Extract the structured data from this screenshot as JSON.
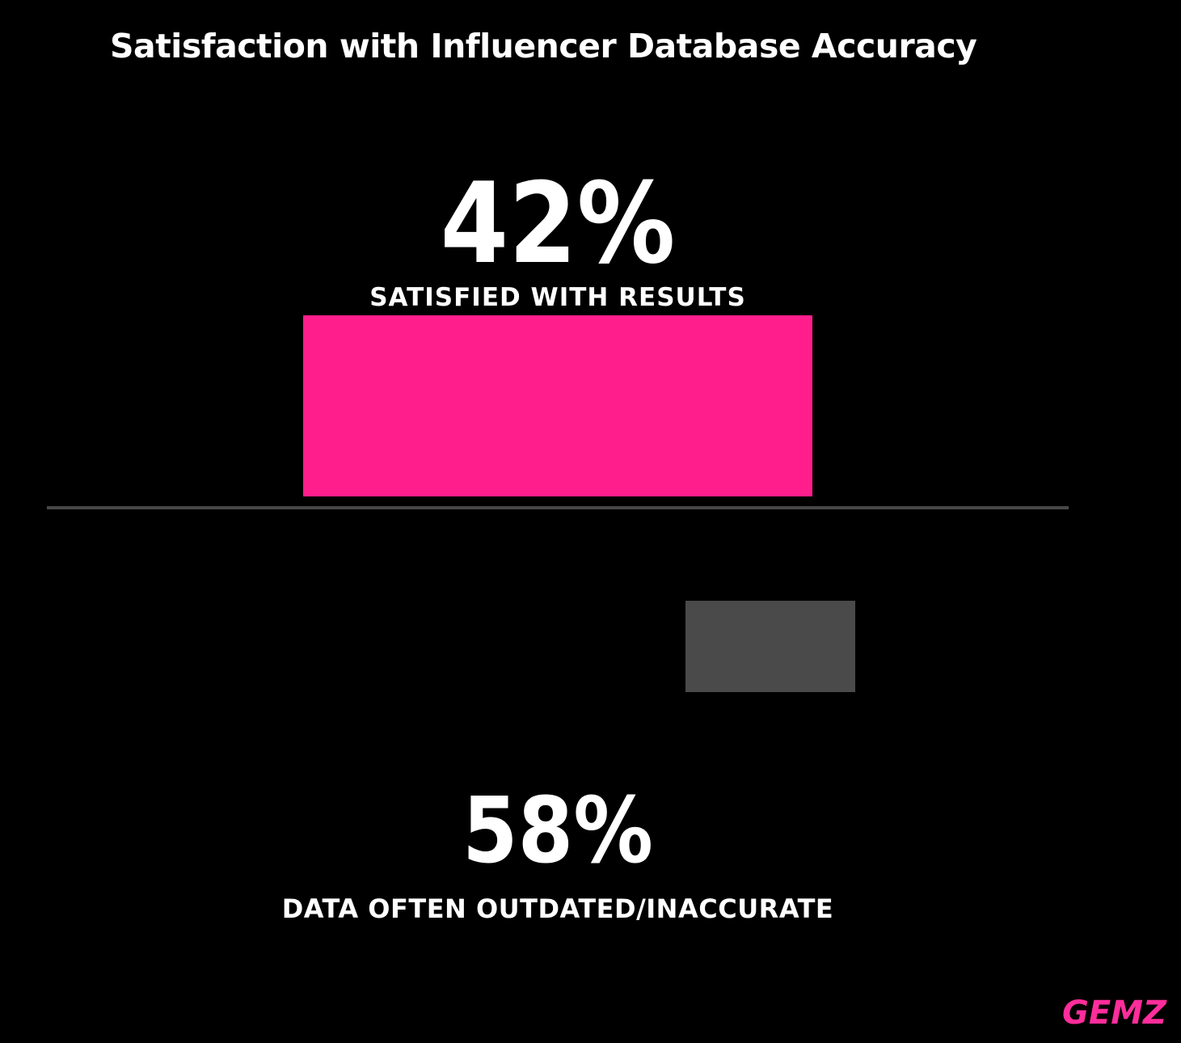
{
  "title": "Satisfaction with Influencer Database Accuracy",
  "brand": "GEMZ",
  "colors": {
    "background": "#000000",
    "title_text": "#ffffff",
    "accent_pink": "#ff1e8c",
    "muted_gray_bar": "#4a4a4a",
    "divider_gray": "#474747",
    "brand_pink": "#ff2d9b"
  },
  "stats": {
    "satisfied": {
      "value": "42%",
      "label": "SATISFIED WITH RESULTS"
    },
    "outdated": {
      "value": "58%",
      "label": "DATA OFTEN OUTDATED/INACCURATE"
    }
  },
  "chart_data": {
    "type": "bar",
    "title": "Satisfaction with Influencer Database Accuracy",
    "categories": [
      "Satisfied with results",
      "Data often outdated/inaccurate"
    ],
    "values": [
      42,
      58
    ],
    "unit": "%",
    "series_colors": [
      "#ff1e8c",
      "#4a4a4a"
    ],
    "data_labels": [
      "42% SATISFIED WITH RESULTS",
      "58% DATA OFTEN OUTDATED/INACCURATE"
    ],
    "legend": "off",
    "axes": "off",
    "grid": "off",
    "background": "#000000",
    "layout_hint": "two stacked annotation blocks separated by a horizontal divider line; top block shows pink bar for 42%, bottom block shows small gray bar for 58%"
  }
}
